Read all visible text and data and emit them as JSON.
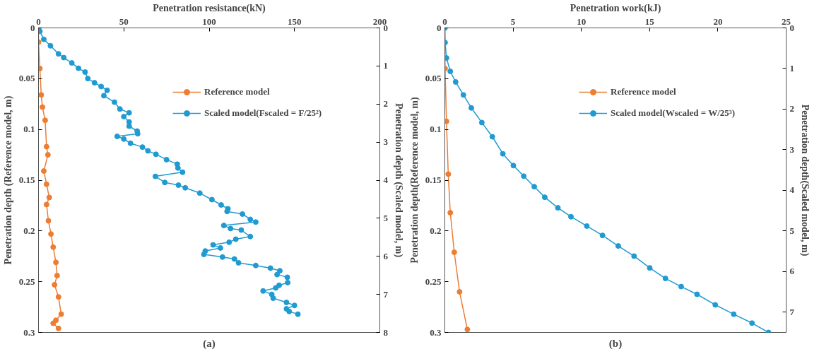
{
  "chart_data": [
    {
      "type": "line",
      "xlabel": "Penetration resistance(kN)",
      "ylabel": "Penetration depth (Reference model, m)",
      "y2label": "Penetration depth (Scaled model, m)",
      "xlim": [
        0,
        200
      ],
      "xticks": [
        0,
        50,
        100,
        150,
        200
      ],
      "ylim": [
        0.3,
        0
      ],
      "yticks": [
        0,
        0.05,
        0.1,
        0.15,
        0.2,
        0.25,
        0.3
      ],
      "y2lim": [
        8,
        0
      ],
      "y2ticks": [
        0,
        1,
        2,
        3,
        4,
        5,
        6,
        7,
        8
      ],
      "marker": "circle",
      "grid": false,
      "legend": "top right",
      "annotations": [
        "(a)"
      ],
      "series": [
        {
          "name": "Reference model",
          "color": "#ed7d31",
          "x": [
            0,
            0,
            0.8,
            1.6,
            2.3,
            3.9,
            4.7,
            5.5,
            3.1,
            4.7,
            6.3,
            4.7,
            5.8,
            7.3,
            8.6,
            10.2,
            10.9,
            9.4,
            11.7,
            13.3,
            10.2,
            8.6,
            11.7
          ],
          "values": [
            0,
            0.014,
            0.04,
            0.066,
            0.078,
            0.091,
            0.117,
            0.125,
            0.141,
            0.154,
            0.167,
            0.174,
            0.19,
            0.203,
            0.216,
            0.231,
            0.244,
            0.253,
            0.265,
            0.282,
            0.288,
            0.291,
            0.296
          ]
        },
        {
          "name": "Scaled model(Fscaled = F/25²)",
          "color": "#1f9bd1",
          "axis": "y2",
          "x": [
            0,
            0.8,
            3.1,
            7,
            11.7,
            14.8,
            19.5,
            23.4,
            27.3,
            28.9,
            32.8,
            36.7,
            40.2,
            38.3,
            44.5,
            47.7,
            53.1,
            50,
            53.1,
            53.1,
            57.8,
            58.1,
            46.1,
            50,
            53.9,
            60.9,
            64.1,
            68.8,
            75,
            81.3,
            81.7,
            84.4,
            68.5,
            74,
            82,
            86,
            94.5,
            101.6,
            107,
            111,
            110.5,
            119.5,
            124.1,
            127.3,
            108.6,
            112.5,
            118.8,
            124.1,
            115.6,
            111.7,
            102.3,
            106.6,
            97.7,
            96.9,
            107.8,
            114.8,
            117.2,
            127.3,
            135.9,
            141.4,
            139.8,
            145.8,
            146,
            141,
            139,
            131.6,
            136.7,
            137.5,
            145.3,
            150,
            145.3,
            146.9,
            152
          ],
          "values": [
            0,
            0.09,
            0.3,
            0.47,
            0.68,
            0.78,
            0.92,
            1.06,
            1.16,
            1.33,
            1.44,
            1.54,
            1.64,
            1.78,
            1.95,
            2.13,
            2.23,
            2.33,
            2.47,
            2.58,
            2.71,
            2.78,
            2.85,
            2.92,
            3.03,
            3.13,
            3.23,
            3.32,
            3.46,
            3.58,
            3.68,
            3.79,
            3.9,
            4.06,
            4.13,
            4.2,
            4.34,
            4.51,
            4.65,
            4.75,
            4.82,
            4.89,
            5.03,
            5.1,
            5.19,
            5.27,
            5.31,
            5.48,
            5.55,
            5.63,
            5.7,
            5.78,
            5.86,
            5.95,
            6.02,
            6.07,
            6.17,
            6.24,
            6.31,
            6.38,
            6.48,
            6.55,
            6.69,
            6.76,
            6.83,
            6.91,
            7.0,
            7.1,
            7.21,
            7.29,
            7.38,
            7.45,
            7.52
          ]
        }
      ]
    },
    {
      "type": "line",
      "xlabel": "Penetration work(kJ)",
      "ylabel": "Penetration depth(Reference model, m)",
      "y2label": "Penetration depth(Scaled model, m)",
      "xlim": [
        0,
        25
      ],
      "xticks": [
        0,
        5,
        10,
        15,
        20,
        25
      ],
      "ylim": [
        0.3,
        0
      ],
      "yticks": [
        0,
        0.05,
        0.1,
        0.15,
        0.2,
        0.25,
        0.3
      ],
      "y2lim": [
        7.5,
        0
      ],
      "y2ticks": [
        0,
        1,
        2,
        3,
        4,
        5,
        6,
        7
      ],
      "marker": "circle",
      "grid": false,
      "legend": "top right",
      "annotations": [
        "(b)"
      ],
      "series": [
        {
          "name": "Reference model",
          "color": "#ed7d31",
          "x": [
            0,
            0.02,
            0.12,
            0.25,
            0.4,
            0.69,
            1.08,
            1.65
          ],
          "values": [
            0,
            0.04,
            0.092,
            0.144,
            0.182,
            0.221,
            0.26,
            0.297
          ]
        },
        {
          "name": "Scaled model(Wscaled = W/25³)",
          "color": "#1f9bd1",
          "axis": "y2",
          "x": [
            0,
            0.02,
            0.12,
            0.4,
            0.79,
            1.36,
            1.94,
            2.71,
            3.48,
            4.25,
            5.02,
            5.78,
            6.55,
            7.32,
            8.28,
            9.24,
            10.4,
            11.55,
            12.7,
            13.86,
            15.01,
            16.16,
            17.31,
            18.47,
            19.81,
            21.16,
            22.5,
            23.71
          ],
          "values": [
            0,
            0.36,
            0.74,
            1.07,
            1.33,
            1.65,
            1.97,
            2.33,
            2.68,
            3.1,
            3.39,
            3.65,
            3.91,
            4.17,
            4.43,
            4.65,
            4.88,
            5.11,
            5.37,
            5.62,
            5.91,
            6.17,
            6.37,
            6.56,
            6.82,
            7.05,
            7.27,
            7.5
          ]
        }
      ]
    }
  ]
}
